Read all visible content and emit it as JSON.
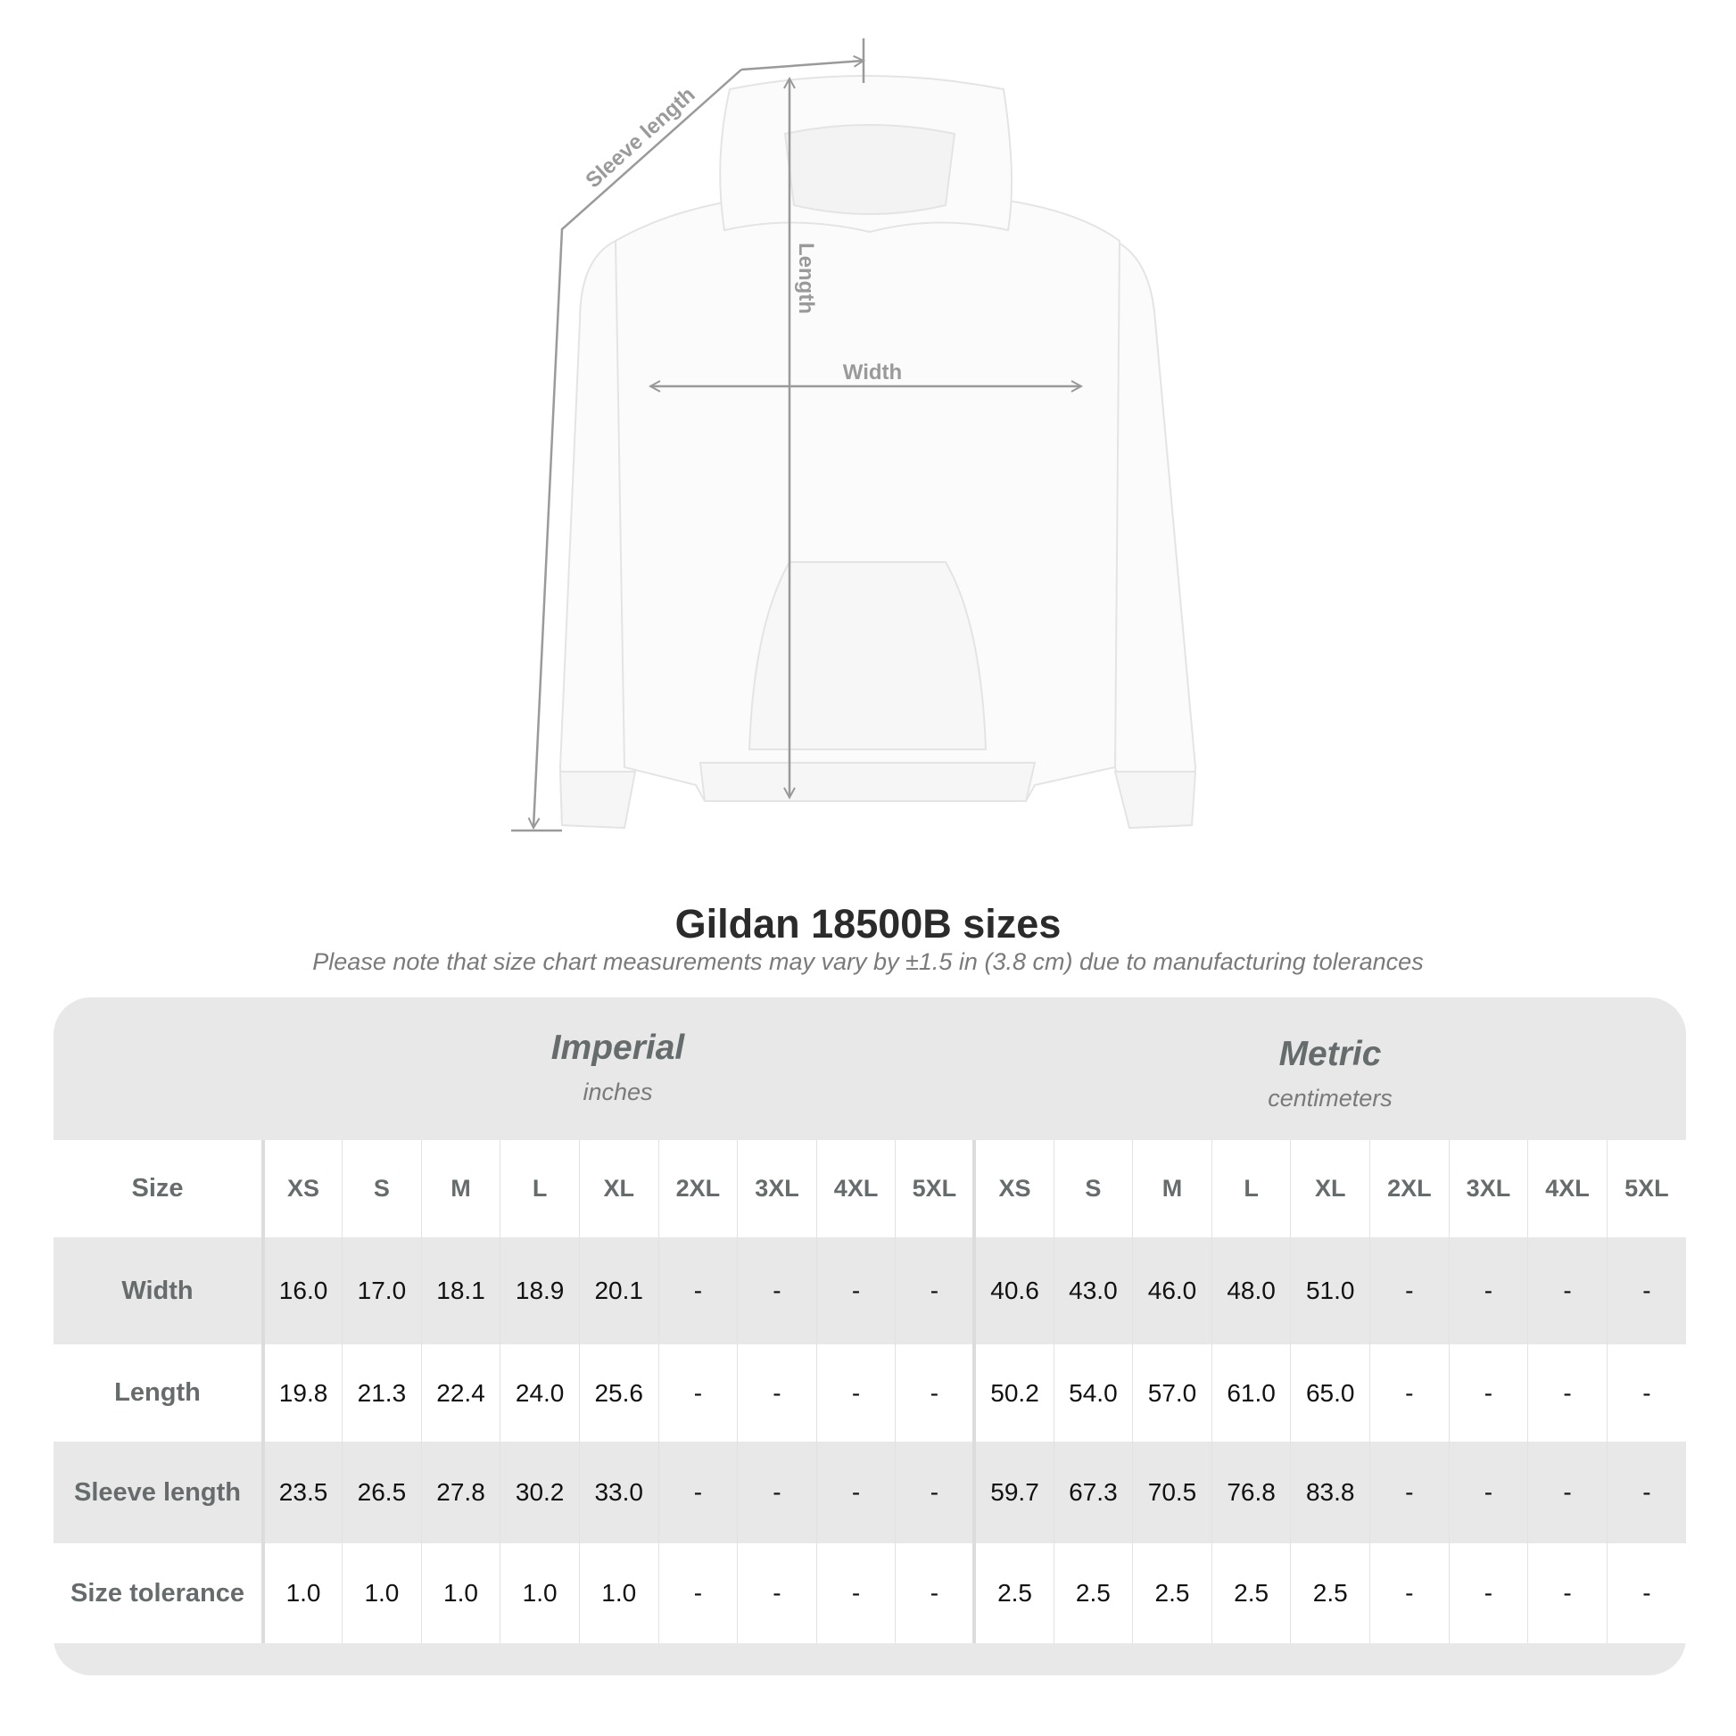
{
  "diagram": {
    "labels": {
      "sleeve": "Sleeve length",
      "length": "Length",
      "width": "Width"
    }
  },
  "title": "Gildan 18500B sizes",
  "subtitle": "Please note that size chart measurements may vary by ±1.5 in (3.8 cm) due to manufacturing tolerances",
  "imperial": {
    "name": "Imperial",
    "unit": "inches"
  },
  "metric": {
    "name": "Metric",
    "unit": "centimeters"
  },
  "table": {
    "size_label": "Size",
    "sizes": [
      "XS",
      "S",
      "M",
      "L",
      "XL",
      "2XL",
      "3XL",
      "4XL",
      "5XL"
    ],
    "rows": [
      {
        "label": "Width",
        "imperial": [
          "16.0",
          "17.0",
          "18.1",
          "18.9",
          "20.1",
          "-",
          "-",
          "-",
          "-"
        ],
        "metric": [
          "40.6",
          "43.0",
          "46.0",
          "48.0",
          "51.0",
          "-",
          "-",
          "-",
          "-"
        ]
      },
      {
        "label": "Length",
        "imperial": [
          "19.8",
          "21.3",
          "22.4",
          "24.0",
          "25.6",
          "-",
          "-",
          "-",
          "-"
        ],
        "metric": [
          "50.2",
          "54.0",
          "57.0",
          "61.0",
          "65.0",
          "-",
          "-",
          "-",
          "-"
        ]
      },
      {
        "label": "Sleeve length",
        "imperial": [
          "23.5",
          "26.5",
          "27.8",
          "30.2",
          "33.0",
          "-",
          "-",
          "-",
          "-"
        ],
        "metric": [
          "59.7",
          "67.3",
          "70.5",
          "76.8",
          "83.8",
          "-",
          "-",
          "-",
          "-"
        ]
      },
      {
        "label": "Size tolerance",
        "imperial": [
          "1.0",
          "1.0",
          "1.0",
          "1.0",
          "1.0",
          "-",
          "-",
          "-",
          "-"
        ],
        "metric": [
          "2.5",
          "2.5",
          "2.5",
          "2.5",
          "2.5",
          "-",
          "-",
          "-",
          "-"
        ]
      }
    ]
  },
  "colors": {
    "table_bg": "#e8e8e8",
    "label_text": "#666b6c",
    "measure_line": "#9a9a9a"
  }
}
